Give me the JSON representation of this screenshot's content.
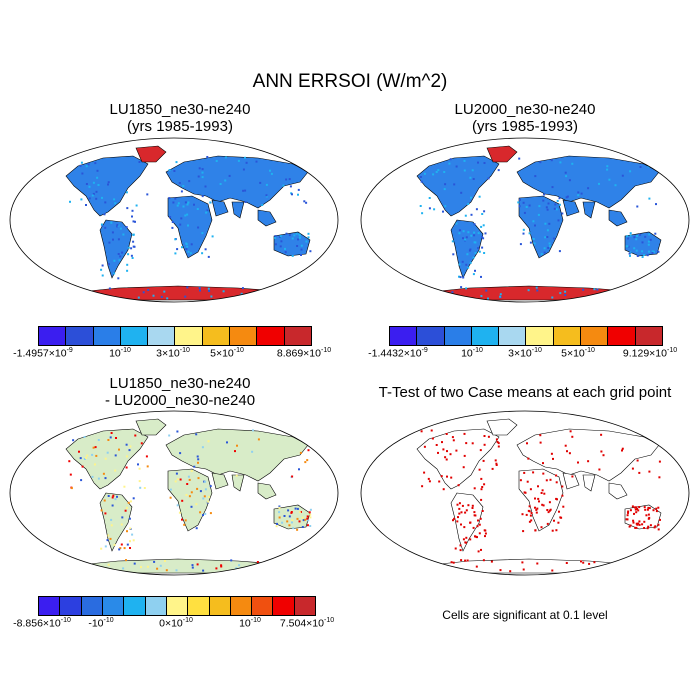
{
  "main_title": "ANN ERRSOI (W/m^2)",
  "panels": {
    "p1": {
      "title1": "LU1850_ne30-ne240",
      "title2": "(yrs 1985-1993)"
    },
    "p2": {
      "title1": "LU2000_ne30-ne240",
      "title2": "(yrs 1985-1993)"
    },
    "p3": {
      "title1": "LU1850_ne30-ne240",
      "title2": "- LU2000_ne30-ne240"
    },
    "p4": {
      "title1": "T-Test of two Case means at each grid point"
    }
  },
  "colorbars": {
    "cb1": {
      "colors": [
        "#3b1ef0",
        "#2c4fd8",
        "#2a7ee8",
        "#1fb2f0",
        "#a9d8f0",
        "#fff48a",
        "#f5bd1e",
        "#f58a10",
        "#f00000",
        "#c8282c"
      ],
      "labels": {
        "min": "-1.4957×10",
        "min_exp": "-9",
        "a": "10",
        "a_exp": "-10",
        "b": "3×10",
        "b_exp": "-10",
        "c": "5×10",
        "c_exp": "-10",
        "max": "8.869×10",
        "max_exp": "-10"
      }
    },
    "cb2": {
      "colors": [
        "#3b1ef0",
        "#2c4fd8",
        "#2a7ee8",
        "#1fb2f0",
        "#a9d8f0",
        "#fff48a",
        "#f5bd1e",
        "#f58a10",
        "#f00000",
        "#c8282c"
      ],
      "labels": {
        "min": "-1.4432×10",
        "min_exp": "-9",
        "a": "10",
        "a_exp": "-10",
        "b": "3×10",
        "b_exp": "-10",
        "c": "5×10",
        "c_exp": "-10",
        "max": "9.129×10",
        "max_exp": "-10"
      }
    },
    "cb3": {
      "colors": [
        "#3b1ef0",
        "#2c3fe0",
        "#2a6ce0",
        "#2a8ae8",
        "#1fb2f0",
        "#8fd0f0",
        "#fff48a",
        "#ffe040",
        "#f5bd1e",
        "#f58a10",
        "#f05010",
        "#f00000",
        "#c8282c"
      ],
      "labels": {
        "min": "-8.856×10",
        "min_exp": "-10",
        "a": "-10",
        "a_exp": "-10",
        "b": "0×10",
        "b_exp": "-10",
        "c": "10",
        "c_exp": "-10",
        "max": "7.504×10",
        "max_exp": "-10"
      }
    }
  },
  "note": "Cells are significant at 0.1 level",
  "map_colors": {
    "land_blue": "#2f82e8",
    "land_dark": "#2a55d8",
    "ice_red": "#d8282c",
    "diff_land": "#d8ecc8",
    "ttest_red": "#e00000"
  }
}
